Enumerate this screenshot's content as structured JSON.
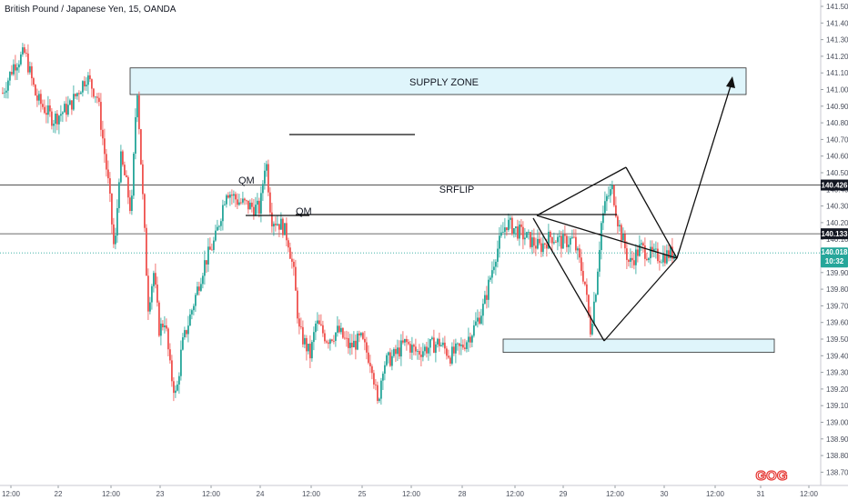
{
  "header": {
    "title": "British Pound / Japanese Yen, 15, OANDA"
  },
  "colors": {
    "up": "#26a69a",
    "down": "#ef5350",
    "zone_fill": "#dff5fb",
    "zone_stroke": "#2b2b2b",
    "badge": "#26a69a",
    "dark_tag": "#131722"
  },
  "chart_data": {
    "type": "candlestick",
    "title": "British Pound / Japanese Yen, 15, OANDA",
    "ylim": [
      138.65,
      141.55
    ],
    "y_ticks": [
      "141.500",
      "141.400",
      "141.300",
      "141.200",
      "141.100",
      "141.000",
      "140.900",
      "140.800",
      "140.700",
      "140.600",
      "140.500",
      "140.400",
      "140.300",
      "140.200",
      "140.100",
      "140.000",
      "139.900",
      "139.800",
      "139.700",
      "139.600",
      "139.500",
      "139.400",
      "139.300",
      "139.200",
      "139.100",
      "139.000",
      "138.900",
      "138.800",
      "138.700"
    ],
    "x_ticks": [
      "12:00",
      "22",
      "12:00",
      "23",
      "12:00",
      "24",
      "12:00",
      "25",
      "12:00",
      "28",
      "12:00",
      "29",
      "12:00",
      "30",
      "12:00",
      "31",
      "12:00"
    ],
    "price_path": [
      [
        0,
        140.98
      ],
      [
        2,
        141.15
      ],
      [
        4,
        141.22
      ],
      [
        6,
        140.95
      ],
      [
        9,
        140.82
      ],
      [
        12,
        140.9
      ],
      [
        15,
        141.08
      ],
      [
        17,
        140.95
      ],
      [
        19,
        140.4
      ],
      [
        20,
        140.0
      ],
      [
        21,
        140.6
      ],
      [
        22,
        140.45
      ],
      [
        23,
        140.25
      ],
      [
        24,
        141.05
      ],
      [
        26,
        139.7
      ],
      [
        27,
        139.9
      ],
      [
        28,
        139.55
      ],
      [
        29,
        139.62
      ],
      [
        30,
        139.3
      ],
      [
        31,
        139.15
      ],
      [
        32,
        139.45
      ],
      [
        34,
        139.7
      ],
      [
        36,
        139.95
      ],
      [
        38,
        140.1
      ],
      [
        40,
        140.4
      ],
      [
        42,
        140.33
      ],
      [
        44,
        140.3
      ],
      [
        46,
        140.28
      ],
      [
        47,
        140.6
      ],
      [
        48,
        140.23
      ],
      [
        50,
        140.18
      ],
      [
        51,
        140.1
      ],
      [
        52,
        139.9
      ],
      [
        53,
        139.55
      ],
      [
        55,
        139.4
      ],
      [
        56,
        139.6
      ],
      [
        58,
        139.5
      ],
      [
        60,
        139.55
      ],
      [
        62,
        139.45
      ],
      [
        64,
        139.5
      ],
      [
        66,
        139.35
      ],
      [
        67,
        139.1
      ],
      [
        68,
        139.35
      ],
      [
        70,
        139.4
      ],
      [
        72,
        139.48
      ],
      [
        74,
        139.42
      ],
      [
        76,
        139.45
      ],
      [
        78,
        139.48
      ],
      [
        80,
        139.4
      ],
      [
        82,
        139.45
      ],
      [
        84,
        139.55
      ],
      [
        86,
        139.7
      ],
      [
        88,
        140.0
      ],
      [
        90,
        140.2
      ],
      [
        92,
        140.15
      ],
      [
        94,
        140.1
      ],
      [
        96,
        140.05
      ],
      [
        98,
        140.12
      ],
      [
        100,
        140.08
      ],
      [
        102,
        140.1
      ],
      [
        104,
        139.85
      ],
      [
        105,
        139.55
      ],
      [
        106,
        139.8
      ],
      [
        107,
        140.2
      ],
      [
        108,
        140.35
      ],
      [
        109,
        140.4
      ],
      [
        110,
        140.2
      ],
      [
        112,
        139.95
      ],
      [
        114,
        140.05
      ],
      [
        116,
        140.0
      ],
      [
        118,
        140.0
      ],
      [
        120,
        140.02
      ]
    ],
    "horizontal_lines": [
      140.426,
      140.133,
      140.018
    ],
    "zones": [
      {
        "label": "SUPPLY ZONE",
        "from": 141.13,
        "to": 140.97
      },
      {
        "label": "",
        "from": 139.5,
        "to": 139.42
      }
    ],
    "annotations": [
      "QM",
      "QM",
      "SRFLIP"
    ],
    "price_tags": [
      {
        "value": "140.426",
        "style": "dark"
      },
      {
        "value": "140.133",
        "style": "dark"
      },
      {
        "value": "140.018",
        "sub": "10:32",
        "style": "badge"
      }
    ],
    "watermark": "GOG"
  },
  "annotation_labels": {
    "supply": "SUPPLY ZONE",
    "srflip": "SRFLIP",
    "qm1": "QM",
    "qm2": "QM"
  }
}
